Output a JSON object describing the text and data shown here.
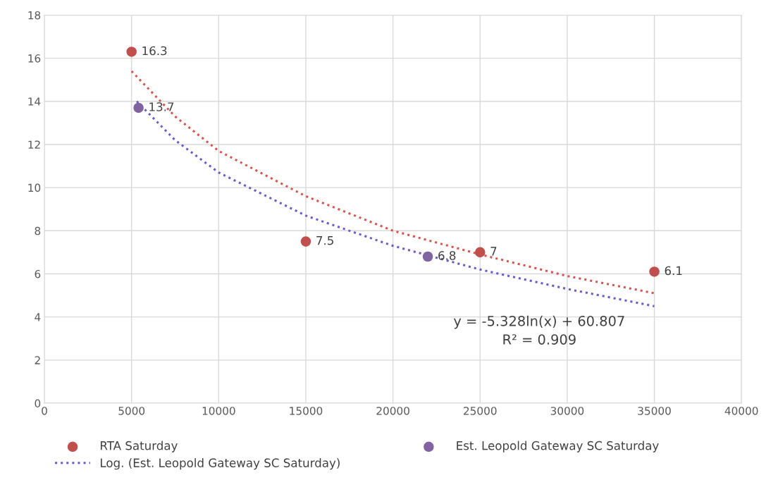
{
  "chart_data": {
    "type": "scatter",
    "xlim": [
      0,
      40000
    ],
    "ylim": [
      0,
      18
    ],
    "xticks": [
      0,
      5000,
      10000,
      15000,
      20000,
      25000,
      30000,
      35000,
      40000
    ],
    "yticks": [
      0,
      2,
      4,
      6,
      8,
      10,
      12,
      14,
      16,
      18
    ],
    "grid": true,
    "legend": "bottom",
    "line_style": "dotted",
    "series": [
      {
        "name": "RTA Saturday",
        "color": "#c0504d",
        "marker": "circle",
        "x": [
          5000,
          15000,
          25000,
          35000
        ],
        "values": [
          16.3,
          7.5,
          7,
          6.1
        ],
        "value_labels": [
          "16.3",
          "7.5",
          "7",
          "6.1"
        ]
      },
      {
        "name": "Est. Leopold Gateway SC Saturday",
        "color": "#8064a2",
        "marker": "circle",
        "x": [
          5400,
          22000
        ],
        "values": [
          13.7,
          6.8
        ],
        "value_labels": [
          "13.7",
          "6.8"
        ]
      },
      {
        "type": "line",
        "color": "#d9534f",
        "x": [
          5000,
          7500,
          10000,
          15000,
          20000,
          25000,
          30000,
          35000
        ],
        "values": [
          15.4,
          13.3,
          11.7,
          9.6,
          8.0,
          6.9,
          5.9,
          5.1
        ]
      },
      {
        "name": "Log. (Est. Leopold Gateway SC Saturday)",
        "type": "line",
        "color": "#6a5acd",
        "x": [
          5300,
          7500,
          10000,
          15000,
          20000,
          25000,
          30000,
          35000
        ],
        "values": [
          14.0,
          12.2,
          10.7,
          8.7,
          7.3,
          6.2,
          5.3,
          4.5
        ]
      }
    ],
    "annotations": [
      "y = -5.328ln(x) + 60.807",
      "R² = 0.909"
    ]
  }
}
